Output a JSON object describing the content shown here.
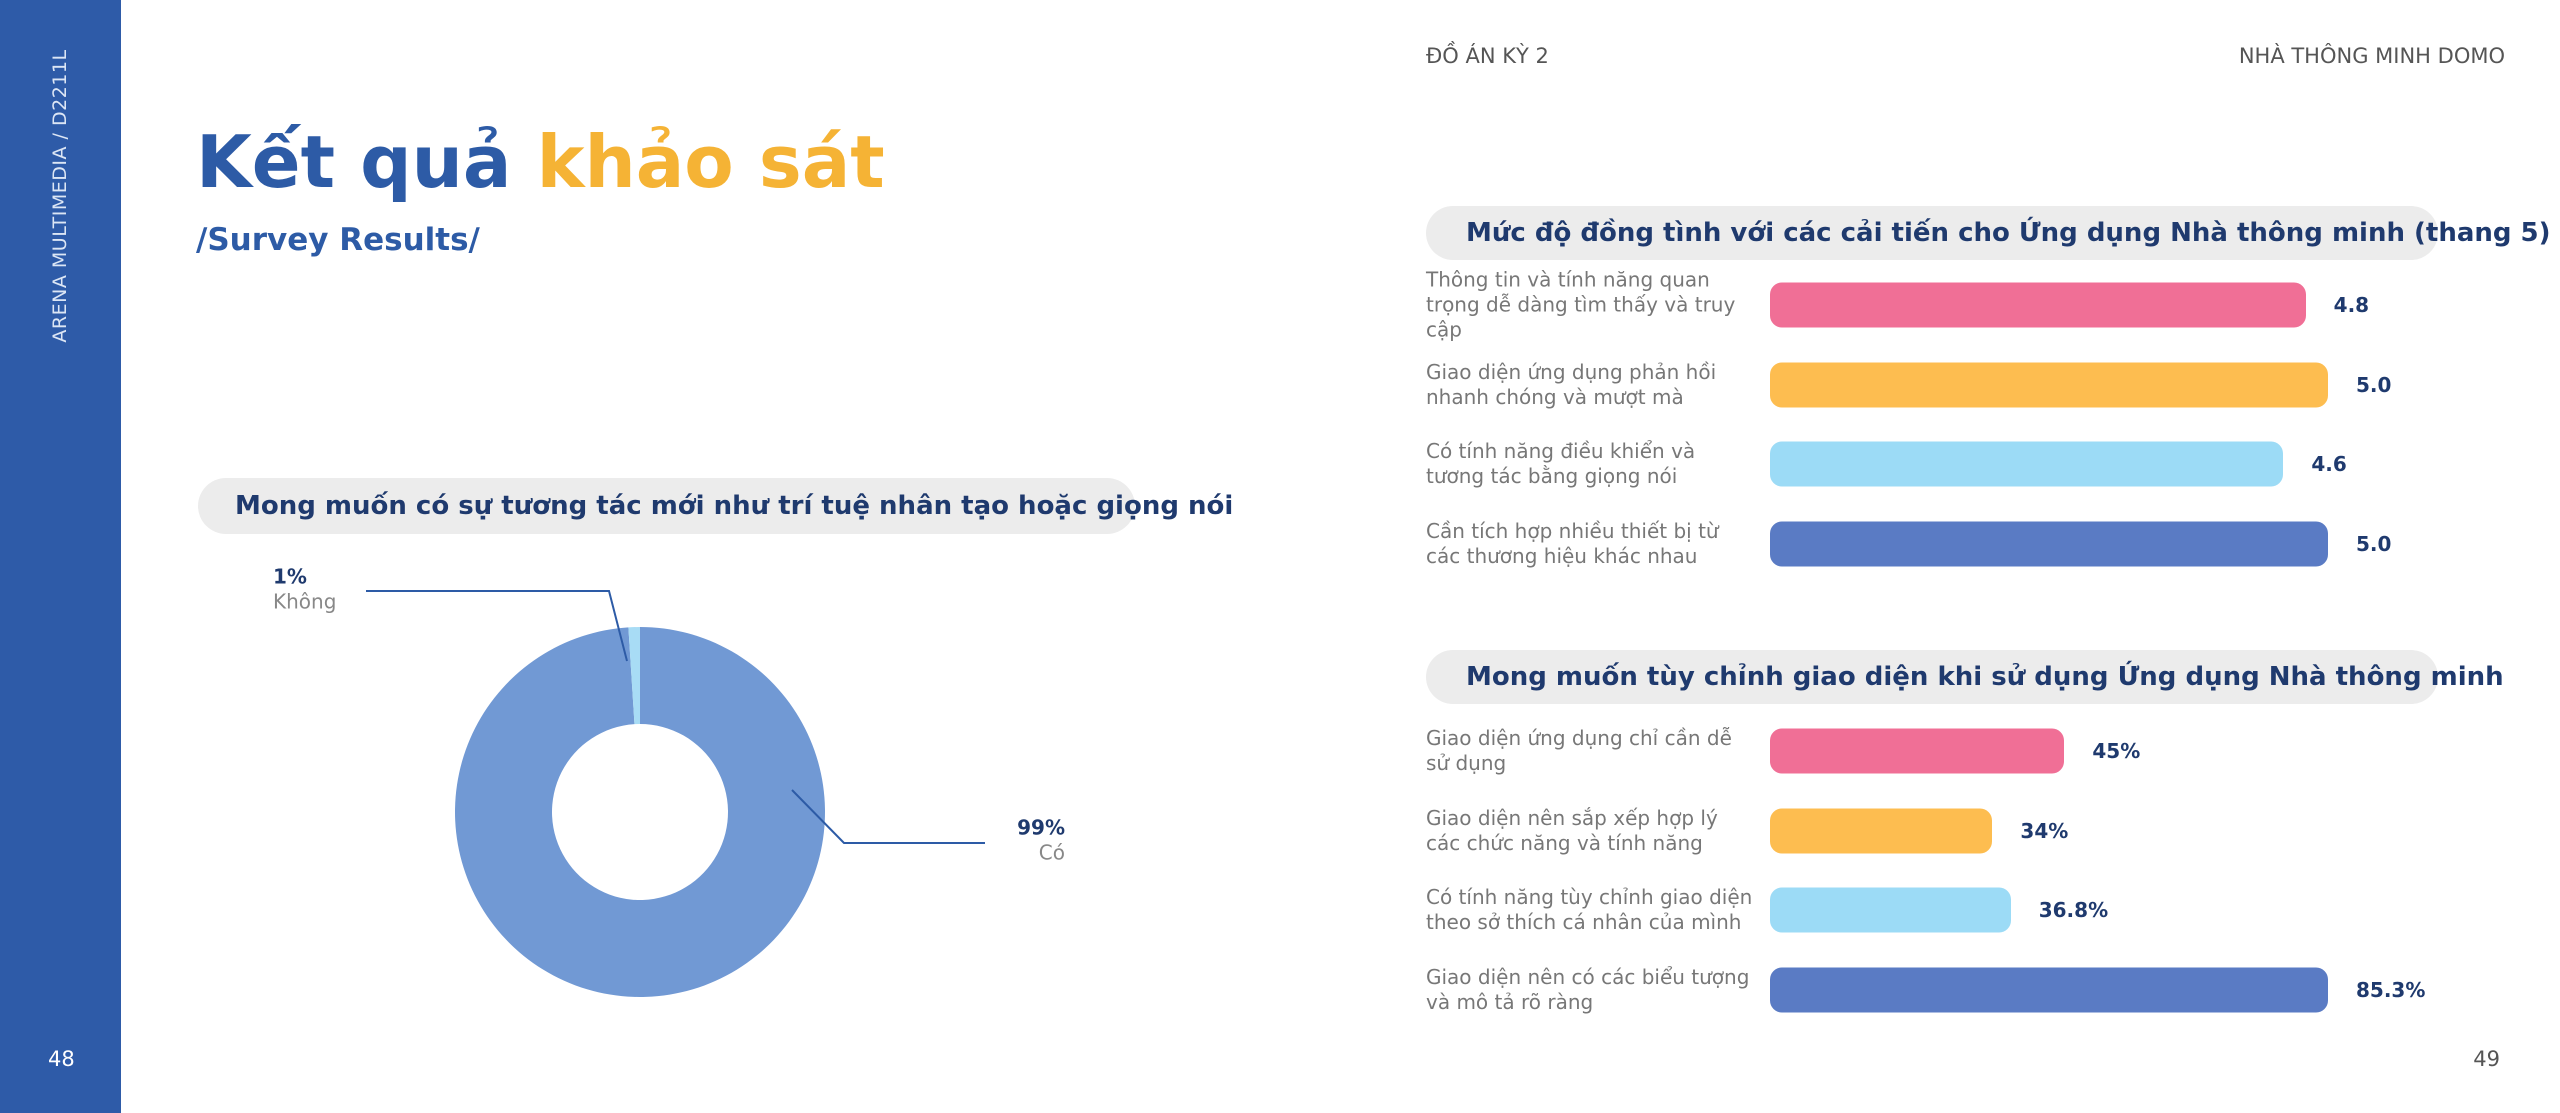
{
  "sidebar": {
    "label": "ARENA MULTIMEDIA / D2211L"
  },
  "header": {
    "left": "ĐỒ ÁN KỲ 2",
    "right": "NHÀ THÔNG MINH DOMO"
  },
  "heading": {
    "part1": "Kết quả",
    "part2": "khảo sát",
    "subtitle": "/Survey Results/"
  },
  "page_numbers": [
    "48",
    "49"
  ],
  "chart_data": [
    {
      "type": "pie",
      "title": "Mong muốn có sự tương tác mới như trí tuệ nhân tạo hoặc giọng nói",
      "categories": [
        "Có",
        "Không"
      ],
      "values": [
        99,
        1
      ],
      "value_labels": [
        "99%",
        "1%"
      ],
      "colors": [
        "#7199d4",
        "#a8dcf5"
      ],
      "donut": true
    },
    {
      "type": "bar",
      "title": "Mức độ đồng tình với các cải tiến cho Ứng dụng Nhà thông minh (thang 5)",
      "categories": [
        "Thông tin và tính năng quan trọng dễ dàng tìm thấy và truy cập",
        "Giao diện ứng dụng phản hồi nhanh chóng và mượt mà",
        "Có tính năng điều khiển và tương tác bằng giọng nói",
        "Cần tích hợp nhiều thiết bị từ các thương hiệu khác nhau"
      ],
      "values": [
        4.8,
        5.0,
        4.6,
        5.0
      ],
      "value_labels": [
        "4.8",
        "5.0",
        "4.6",
        "5.0"
      ],
      "colors": [
        "#f06f96",
        "#fdbd50",
        "#9cdbf6",
        "#5a7bc4"
      ]
    },
    {
      "type": "bar",
      "title": "Mong muốn tùy chỉnh giao diện khi sử dụng Ứng dụng Nhà thông minh",
      "categories": [
        "Giao diện ứng dụng chỉ cần dễ sử dụng",
        "Giao diện nên sắp xếp hợp lý các chức năng và tính năng",
        "Có tính năng tùy chỉnh giao diện theo sở thích cá nhân của mình",
        "Giao diện nên có các biểu tượng và mô tả rõ ràng"
      ],
      "values": [
        45,
        34,
        36.8,
        85.3
      ],
      "value_labels": [
        "45%",
        "34%",
        "36.8%",
        "85.3%"
      ],
      "colors": [
        "#f06f96",
        "#fdbd50",
        "#9cdbf6",
        "#5a7bc4"
      ]
    }
  ]
}
